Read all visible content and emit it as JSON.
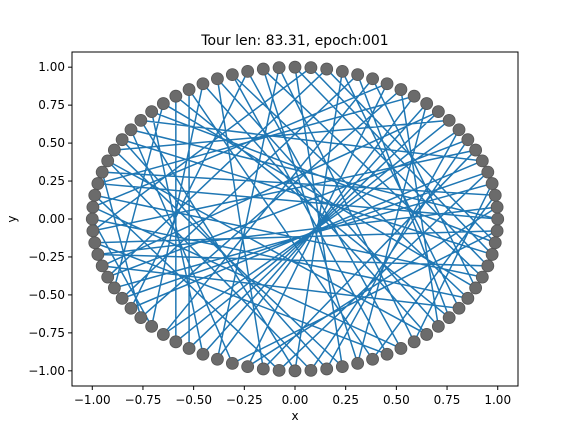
{
  "chart_data": {
    "type": "scatter",
    "title": "Tour len: 83.31, epoch:001",
    "xlabel": "x",
    "ylabel": "y",
    "xlim": [
      -1.1,
      1.1
    ],
    "ylim": [
      -1.1,
      1.1
    ],
    "xticks": [
      {
        "value": -1.0,
        "label": "−1.00"
      },
      {
        "value": -0.75,
        "label": "−0.75"
      },
      {
        "value": -0.5,
        "label": "−0.50"
      },
      {
        "value": -0.25,
        "label": "−0.25"
      },
      {
        "value": 0.0,
        "label": "0.00"
      },
      {
        "value": 0.25,
        "label": "0.25"
      },
      {
        "value": 0.5,
        "label": "0.50"
      },
      {
        "value": 0.75,
        "label": "0.75"
      },
      {
        "value": 1.0,
        "label": "1.00"
      }
    ],
    "yticks": [
      {
        "value": -1.0,
        "label": "−1.00"
      },
      {
        "value": -0.75,
        "label": "−0.75"
      },
      {
        "value": -0.5,
        "label": "−0.50"
      },
      {
        "value": -0.25,
        "label": "−0.25"
      },
      {
        "value": 0.0,
        "label": "0.00"
      },
      {
        "value": 0.25,
        "label": "0.25"
      },
      {
        "value": 0.5,
        "label": "0.50"
      },
      {
        "value": 0.75,
        "label": "0.75"
      },
      {
        "value": 1.0,
        "label": "1.00"
      }
    ],
    "grid": false,
    "nodes_count": 80,
    "node_color": "#6b6b6b",
    "line_color": "#1f77b4",
    "tour_order": [
      0,
      37,
      12,
      55,
      21,
      68,
      3,
      46,
      29,
      74,
      15,
      51,
      8,
      62,
      33,
      77,
      19,
      41,
      6,
      58,
      25,
      70,
      13,
      49,
      36,
      2,
      65,
      27,
      53,
      10,
      44,
      72,
      17,
      60,
      31,
      5,
      48,
      23,
      67,
      39,
      14,
      57,
      1,
      43,
      76,
      20,
      63,
      34,
      9,
      52,
      28,
      71,
      16,
      47,
      4,
      59,
      38,
      75,
      22,
      64,
      11,
      54,
      30,
      78,
      18,
      45,
      7,
      61,
      35,
      69,
      26,
      50,
      40,
      73,
      24,
      66,
      42,
      79,
      56,
      32
    ]
  }
}
